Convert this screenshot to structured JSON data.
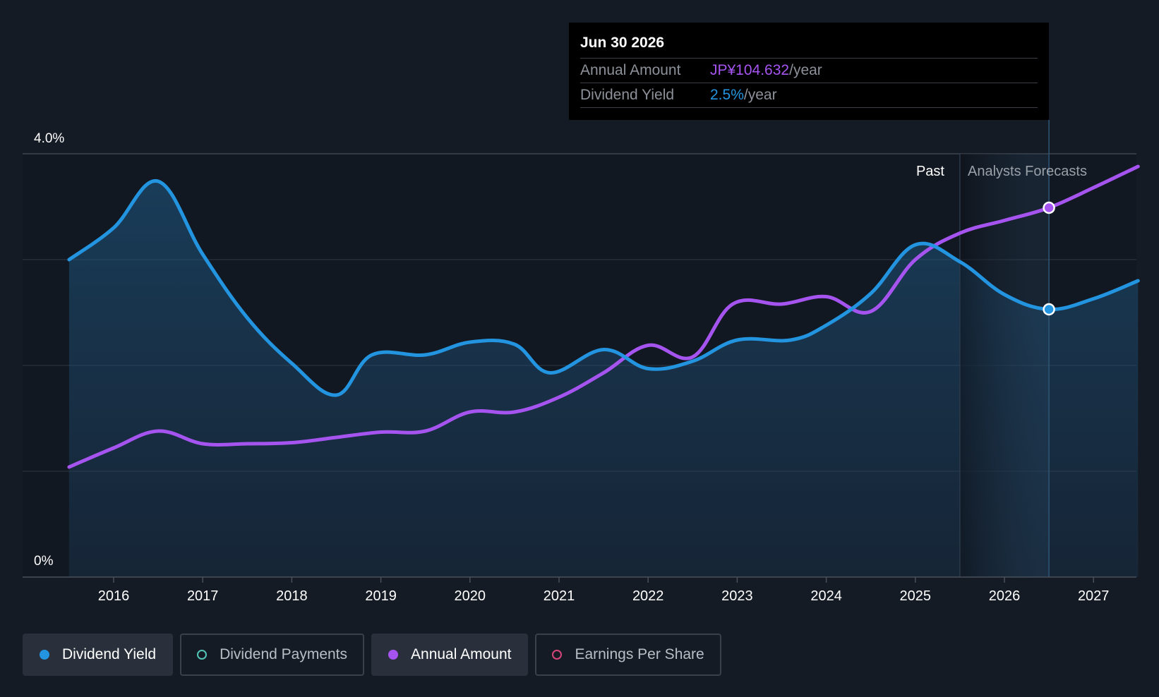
{
  "chart_data": {
    "type": "line",
    "title": "",
    "y_axis": {
      "top_label": "4.0%",
      "bottom_label": "0%",
      "ylim": [
        0,
        4.0
      ],
      "gridlines": [
        0,
        1.0,
        2.0,
        3.0,
        4.0
      ]
    },
    "x_axis": {
      "tick_labels": [
        "2016",
        "2017",
        "2018",
        "2019",
        "2020",
        "2021",
        "2022",
        "2023",
        "2024",
        "2025",
        "2026",
        "2027"
      ],
      "xlim": [
        2015.25,
        2027.5
      ]
    },
    "region_labels": {
      "past": "Past",
      "forecast": "Analysts Forecasts"
    },
    "forecast_start": 2025.5,
    "hover_x": 2026.5,
    "series": [
      {
        "name": "Dividend Yield",
        "color": "#2394df",
        "filled": true,
        "points": [
          [
            2015.5,
            3.0
          ],
          [
            2016.0,
            3.3
          ],
          [
            2016.5,
            3.74
          ],
          [
            2017.0,
            3.05
          ],
          [
            2017.5,
            2.45
          ],
          [
            2018.0,
            2.02
          ],
          [
            2018.5,
            1.72
          ],
          [
            2018.9,
            2.1
          ],
          [
            2019.5,
            2.1
          ],
          [
            2020.0,
            2.22
          ],
          [
            2020.5,
            2.2
          ],
          [
            2020.9,
            1.93
          ],
          [
            2021.5,
            2.15
          ],
          [
            2022.0,
            1.97
          ],
          [
            2022.5,
            2.04
          ],
          [
            2023.0,
            2.24
          ],
          [
            2023.6,
            2.24
          ],
          [
            2024.0,
            2.38
          ],
          [
            2024.5,
            2.68
          ],
          [
            2025.0,
            3.14
          ],
          [
            2025.5,
            2.98
          ],
          [
            2026.0,
            2.67
          ],
          [
            2026.5,
            2.53
          ],
          [
            2027.0,
            2.63
          ],
          [
            2027.5,
            2.8
          ]
        ]
      },
      {
        "name": "Annual Amount",
        "color": "#a654f0",
        "filled": false,
        "points": [
          [
            2015.5,
            1.04
          ],
          [
            2016.0,
            1.22
          ],
          [
            2016.5,
            1.38
          ],
          [
            2017.0,
            1.26
          ],
          [
            2017.5,
            1.26
          ],
          [
            2018.0,
            1.27
          ],
          [
            2018.5,
            1.32
          ],
          [
            2019.0,
            1.37
          ],
          [
            2019.5,
            1.38
          ],
          [
            2020.0,
            1.56
          ],
          [
            2020.5,
            1.56
          ],
          [
            2021.0,
            1.7
          ],
          [
            2021.5,
            1.93
          ],
          [
            2022.0,
            2.19
          ],
          [
            2022.5,
            2.08
          ],
          [
            2022.95,
            2.58
          ],
          [
            2023.5,
            2.58
          ],
          [
            2024.0,
            2.65
          ],
          [
            2024.5,
            2.51
          ],
          [
            2025.0,
            3.0
          ],
          [
            2025.5,
            3.25
          ],
          [
            2026.0,
            3.37
          ],
          [
            2026.5,
            3.49
          ],
          [
            2027.0,
            3.68
          ],
          [
            2027.5,
            3.88
          ]
        ]
      }
    ]
  },
  "tooltip": {
    "date": "Jun 30 2026",
    "annual_amount_label": "Annual Amount",
    "annual_amount_value": "JP¥104.632",
    "annual_amount_unit": "/year",
    "dividend_yield_label": "Dividend Yield",
    "dividend_yield_value": "2.5%",
    "dividend_yield_unit": "/year"
  },
  "legend": [
    {
      "label": "Dividend Yield",
      "color": "#2394df",
      "active": true,
      "hollow": false
    },
    {
      "label": "Dividend Payments",
      "color": "#52c5b8",
      "active": false,
      "hollow": true
    },
    {
      "label": "Annual Amount",
      "color": "#a654f0",
      "active": true,
      "hollow": false
    },
    {
      "label": "Earnings Per Share",
      "color": "#d6457a",
      "active": false,
      "hollow": true
    }
  ],
  "colors": {
    "background": "#151b24",
    "gridline": "#2d333d",
    "axis_text": "#ffffff",
    "forecast_text": "#9aa0a8",
    "tooltip_yield": "#2394df",
    "tooltip_amount": "#a654f0"
  }
}
